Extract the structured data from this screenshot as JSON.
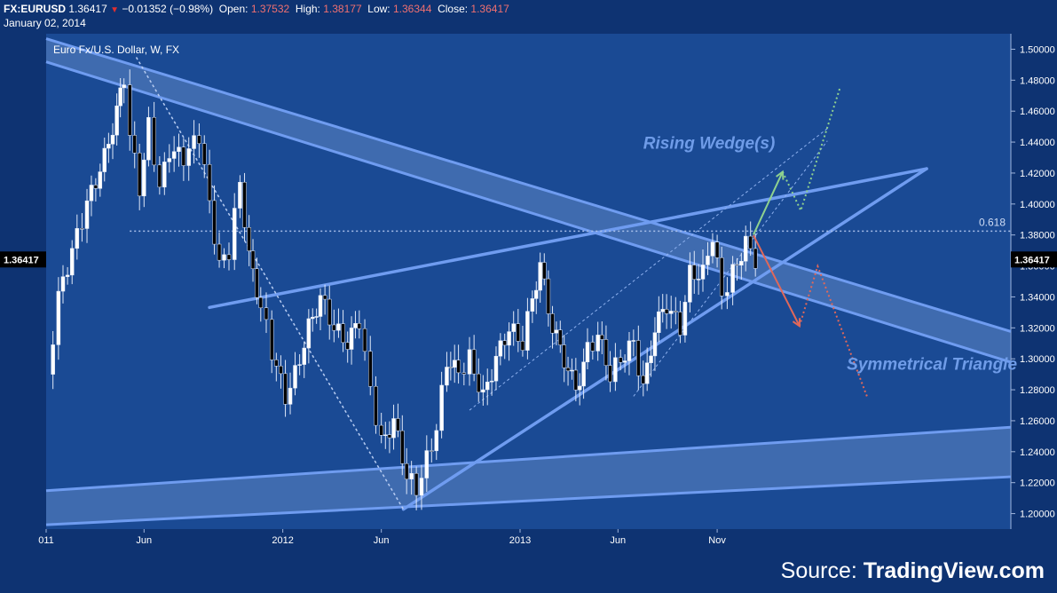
{
  "header": {
    "symbol": "FX:EURUSD",
    "last": "1.36417",
    "change": "−0.01352 (−0.98%)",
    "open_label": "Open:",
    "open": "1.37532",
    "high_label": "High:",
    "high": "1.38177",
    "low_label": "Low:",
    "low": "1.36344",
    "close_label": "Close:",
    "close": "1.36417",
    "date": "January 02, 2014"
  },
  "source": {
    "prefix": "Source:",
    "brand": "TradingView.com"
  },
  "colors": {
    "background": "#0e3372",
    "plot": "#1a4a94",
    "line": "#6f9cf0",
    "band_fill": "#5e86c4",
    "up_candle": "#ffffff",
    "down_candle": "#000000",
    "up_arrow": "#8fd18f",
    "down_arrow": "#e0685a",
    "label": "#6f9ce8"
  },
  "chart_data": {
    "type": "candlestick",
    "title": "Euro Fx/U.S. Dollar, W, FX",
    "ylim": [
      1.19,
      1.51
    ],
    "y_ticks": [
      "1.50000",
      "1.48000",
      "1.46000",
      "1.44000",
      "1.42000",
      "1.40000",
      "1.38000",
      "1.36000",
      "1.34000",
      "1.32000",
      "1.30000",
      "1.28000",
      "1.26000",
      "1.24000",
      "1.22000",
      "1.20000"
    ],
    "x_ticks": [
      {
        "label": "011",
        "date": "2011-01-01"
      },
      {
        "label": "Jun",
        "date": "2011-06-01"
      },
      {
        "label": "2012",
        "date": "2012-01-01"
      },
      {
        "label": "Jun",
        "date": "2012-06-01"
      },
      {
        "label": "2013",
        "date": "2013-01-01"
      },
      {
        "label": "Jun",
        "date": "2013-06-01"
      },
      {
        "label": "Nov",
        "date": "2013-11-01"
      }
    ],
    "last_price_label": "1.36417",
    "fib_level": {
      "label": "0.618",
      "value": 1.3825
    },
    "price_path": [
      [
        "2011-01-03",
        1.29
      ],
      [
        "2011-01-20",
        1.34
      ],
      [
        "2011-02-10",
        1.37
      ],
      [
        "2011-03-05",
        1.4
      ],
      [
        "2011-04-01",
        1.43
      ],
      [
        "2011-04-20",
        1.46
      ],
      [
        "2011-05-01",
        1.48
      ],
      [
        "2011-05-10",
        1.445
      ],
      [
        "2011-05-25",
        1.41
      ],
      [
        "2011-06-08",
        1.45
      ],
      [
        "2011-06-25",
        1.41
      ],
      [
        "2011-07-10",
        1.435
      ],
      [
        "2011-08-01",
        1.43
      ],
      [
        "2011-08-25",
        1.445
      ],
      [
        "2011-09-10",
        1.4
      ],
      [
        "2011-09-25",
        1.36
      ],
      [
        "2011-10-10",
        1.37
      ],
      [
        "2011-10-27",
        1.415
      ],
      [
        "2011-11-10",
        1.365
      ],
      [
        "2011-11-28",
        1.335
      ],
      [
        "2011-12-15",
        1.305
      ],
      [
        "2012-01-05",
        1.275
      ],
      [
        "2012-01-20",
        1.29
      ],
      [
        "2012-02-10",
        1.32
      ],
      [
        "2012-02-28",
        1.34
      ],
      [
        "2012-03-20",
        1.32
      ],
      [
        "2012-04-10",
        1.31
      ],
      [
        "2012-04-28",
        1.325
      ],
      [
        "2012-05-15",
        1.28
      ],
      [
        "2012-06-01",
        1.245
      ],
      [
        "2012-06-20",
        1.26
      ],
      [
        "2012-07-10",
        1.225
      ],
      [
        "2012-07-25",
        1.215
      ],
      [
        "2012-08-10",
        1.235
      ],
      [
        "2012-08-25",
        1.255
      ],
      [
        "2012-09-10",
        1.3
      ],
      [
        "2012-09-28",
        1.29
      ],
      [
        "2012-10-15",
        1.3
      ],
      [
        "2012-11-05",
        1.275
      ],
      [
        "2012-11-25",
        1.3
      ],
      [
        "2012-12-15",
        1.32
      ],
      [
        "2013-01-05",
        1.31
      ],
      [
        "2013-01-20",
        1.34
      ],
      [
        "2013-02-01",
        1.36
      ],
      [
        "2013-02-20",
        1.32
      ],
      [
        "2013-03-10",
        1.3
      ],
      [
        "2013-03-28",
        1.28
      ],
      [
        "2013-04-15",
        1.305
      ],
      [
        "2013-05-01",
        1.315
      ],
      [
        "2013-05-20",
        1.29
      ],
      [
        "2013-06-05",
        1.3
      ],
      [
        "2013-06-25",
        1.31
      ],
      [
        "2013-07-10",
        1.28
      ],
      [
        "2013-07-28",
        1.32
      ],
      [
        "2013-08-15",
        1.335
      ],
      [
        "2013-09-05",
        1.32
      ],
      [
        "2013-09-20",
        1.355
      ],
      [
        "2013-10-10",
        1.355
      ],
      [
        "2013-10-25",
        1.38
      ],
      [
        "2013-11-08",
        1.34
      ],
      [
        "2013-11-25",
        1.355
      ],
      [
        "2013-12-15",
        1.375
      ],
      [
        "2013-12-30",
        1.3642
      ]
    ]
  },
  "annotations": {
    "rising_wedge": "Rising Wedge(s)",
    "symmetrical_triangle": "Symmetrical Triangle"
  }
}
